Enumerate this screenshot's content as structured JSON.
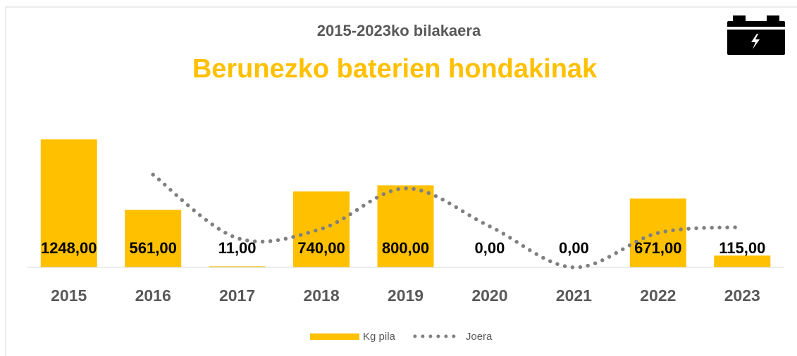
{
  "chart_data": {
    "type": "bar",
    "title": "2015-2023ko bilakaera",
    "subtitle": "Berunezko baterien hondakinak",
    "categories": [
      "2015",
      "2016",
      "2017",
      "2018",
      "2019",
      "2020",
      "2021",
      "2022",
      "2023"
    ],
    "series": [
      {
        "name": "Kg pila",
        "type": "bar",
        "color": "#ffc000",
        "values": [
          1248,
          561,
          11,
          740,
          800,
          0,
          0,
          671,
          115
        ],
        "value_labels": [
          "1248,00",
          "561,00",
          "11,00",
          "740,00",
          "800,00",
          "0,00",
          "0,00",
          "671,00",
          "115,00"
        ]
      },
      {
        "name": "Joera",
        "type": "line",
        "color": "#808080",
        "values": [
          null,
          904.5,
          286,
          375.5,
          770,
          400,
          0,
          335.5,
          393
        ]
      }
    ],
    "ylim": [
      0,
      1400
    ],
    "legend": "bottom"
  }
}
